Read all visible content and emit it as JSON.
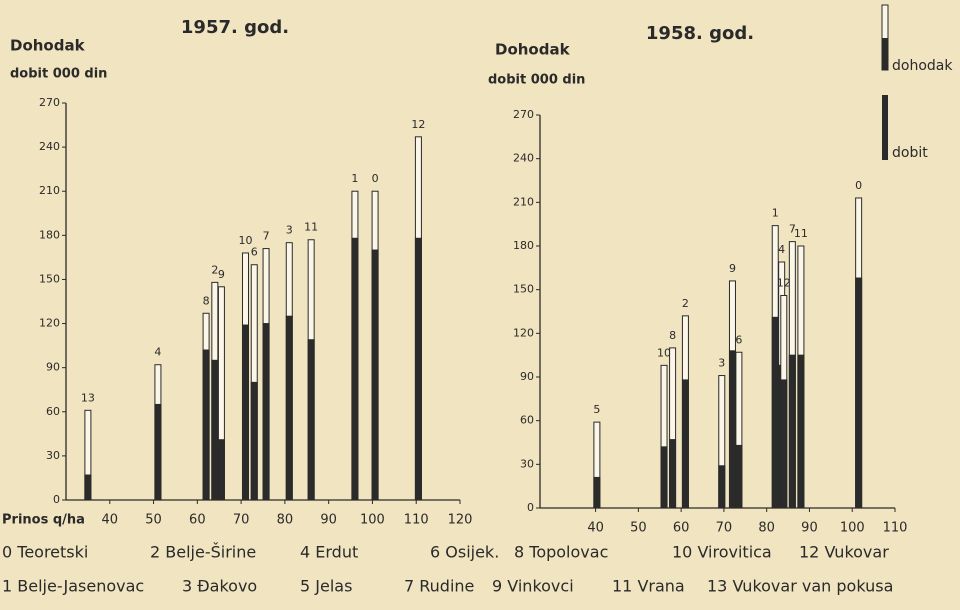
{
  "chart_data": [
    {
      "type": "bar",
      "title": "1957. god.",
      "ylabel": [
        "Dohodak",
        "dobit 000 din"
      ],
      "xlabel": "Prinos q/ha",
      "x": [
        35,
        51,
        62,
        64,
        65.5,
        71,
        73,
        75.7,
        81,
        86,
        96,
        100.6,
        110.5
      ],
      "bar_labels": [
        "13",
        "4",
        "8",
        "2",
        "9",
        "10",
        "6",
        "7",
        "3",
        "11",
        "1",
        "0",
        "12"
      ],
      "series": [
        {
          "name": "dohodak",
          "color": "#fbf6e8",
          "values": [
            61,
            92,
            127,
            148,
            145,
            168,
            160,
            171,
            175,
            177,
            210,
            210,
            247
          ]
        },
        {
          "name": "dobit",
          "color": "#2b2b2b",
          "values": [
            17,
            65,
            102,
            95,
            41,
            119,
            80,
            120,
            125,
            109,
            178,
            170,
            178
          ]
        }
      ],
      "xlim": [
        30,
        120
      ],
      "xticks": [
        40,
        50,
        60,
        70,
        80,
        90,
        100,
        110,
        120
      ],
      "ylim": [
        0,
        270
      ],
      "yticks": [
        0,
        30,
        60,
        90,
        120,
        150,
        180,
        210,
        240,
        270
      ]
    },
    {
      "type": "bar",
      "title": "1958. god.",
      "ylabel": [
        "Dohodak",
        "dobit 000 din"
      ],
      "x": [
        40.3,
        56,
        58,
        61,
        69.5,
        72,
        73.5,
        82,
        83.5,
        84,
        86,
        88,
        101.5
      ],
      "bar_labels": [
        "5",
        "10",
        "8",
        "2",
        "3",
        "9",
        "6",
        "1",
        "4",
        "12",
        "7",
        "11",
        "0"
      ],
      "series": [
        {
          "name": "dohodak",
          "color": "#fbf6e8",
          "values": [
            59,
            98,
            110,
            132,
            91,
            156,
            107,
            194,
            169,
            146,
            183,
            180,
            213
          ]
        },
        {
          "name": "dobit",
          "color": "#2b2b2b",
          "values": [
            21,
            42,
            47,
            88,
            29,
            108,
            43,
            131,
            98,
            88,
            105,
            105,
            158
          ]
        }
      ],
      "xlim": [
        27,
        110
      ],
      "xticks": [
        40,
        50,
        60,
        70,
        80,
        90,
        100,
        110
      ],
      "ylim": [
        0,
        270
      ],
      "yticks": [
        0,
        30,
        60,
        90,
        120,
        150,
        180,
        210,
        240,
        270
      ]
    }
  ],
  "key": [
    "0 Teoretski",
    "2 Belje-Širine",
    "4 Erdut",
    "6 Osijek.",
    "8 Topolovac",
    "10 Virovitica",
    "12 Vukovar",
    "1 Belje-Jasenovac",
    "3 Đakovo",
    "5 Jelas",
    "7 Rudine",
    "9 Vinkovci",
    "11 Vrana",
    "13 Vukovar van pokusa"
  ]
}
